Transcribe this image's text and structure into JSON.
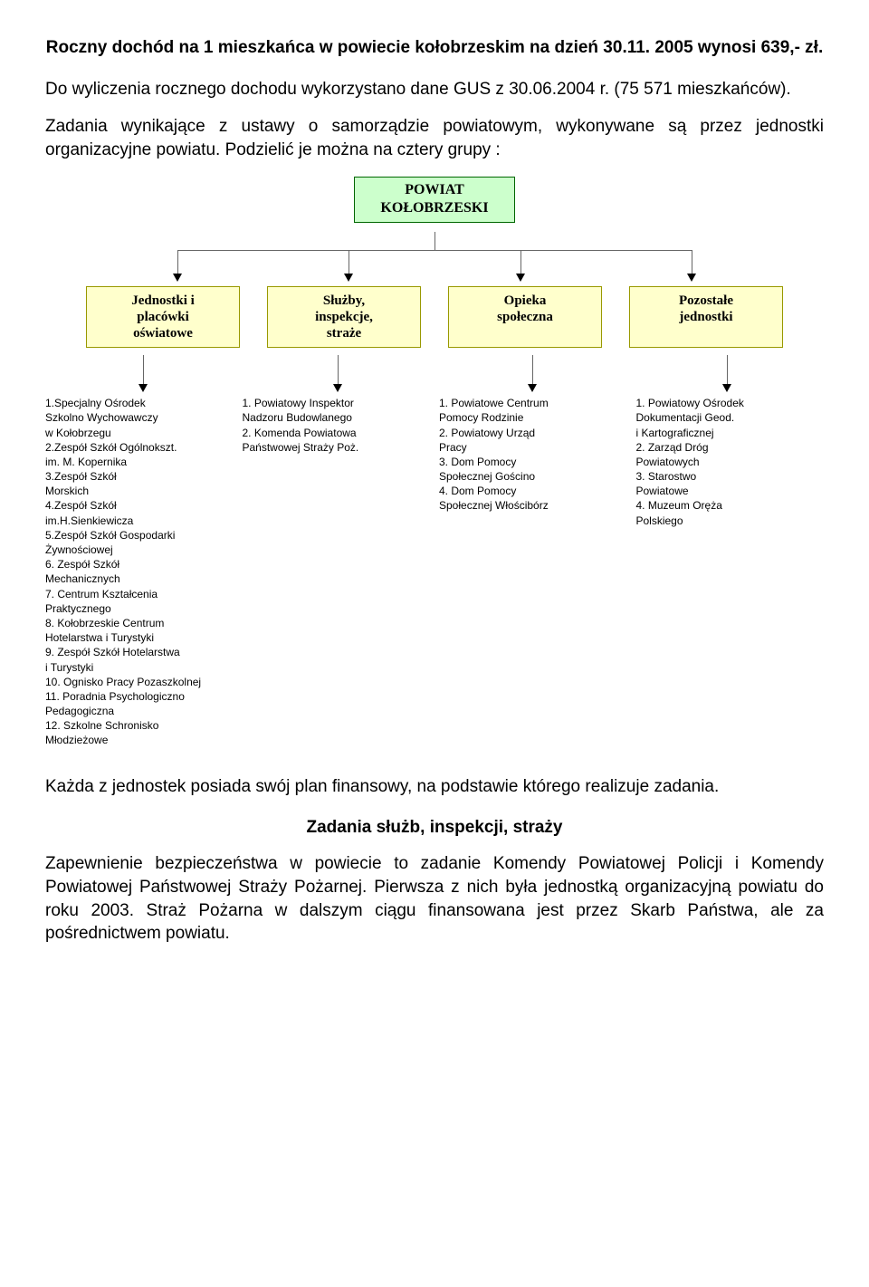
{
  "title": "Roczny dochód na 1 mieszkańca w powiecie kołobrzeskim na dzień 30.11. 2005 wynosi 639,- zł.",
  "para1": "Do wyliczenia rocznego dochodu wykorzystano dane GUS z 30.06.2004 r. (75 571 mieszkańców).",
  "para2": "Zadania wynikające z ustawy o samorządzie powiatowym, wykonywane są przez jednostki organizacyjne powiatu. Podzielić je można na cztery grupy :",
  "diagram": {
    "root": "POWIAT\nKOŁOBRZESKI",
    "children": [
      "Jednostki i\nplacówki\noświatowe",
      "Służby,\ninspekcje,\nstraże",
      "Opieka\nspołeczna",
      "Pozostałe\njednostki"
    ],
    "root_bg": "#ccffcc",
    "root_border": "#006600",
    "child_bg": "#ffffcc",
    "child_border": "#999900"
  },
  "columns": [
    {
      "items": [
        "1.Specjalny Ośrodek\n   Szkolno Wychowawczy\n   w Kołobrzegu",
        "2.Zespół Szkół Ogólnokszt.\n   im. M. Kopernika",
        "3.Zespół Szkół\n   Morskich",
        "4.Zespół Szkół\n   im.H.Sienkiewicza",
        "5.Zespół Szkół Gospodarki\n   Żywnościowej",
        "6. Zespół Szkół\n   Mechanicznych",
        "7. Centrum Kształcenia\n   Praktycznego",
        "8. Kołobrzeskie Centrum\n   Hotelarstwa i Turystyki",
        "9. Zespół Szkół Hotelarstwa\n   i Turystyki",
        "10. Ognisko Pracy Pozaszkolnej",
        "11. Poradnia Psychologiczno\n   Pedagogiczna",
        "12. Szkolne Schronisko\n   Młodzieżowe"
      ]
    },
    {
      "items": [
        "1. Powiatowy Inspektor\n   Nadzoru Budowlanego",
        "2. Komenda Powiatowa\n   Państwowej Straży Poż."
      ]
    },
    {
      "items": [
        "1. Powiatowe Centrum\n   Pomocy Rodzinie",
        "2. Powiatowy Urząd\n    Pracy",
        "3. Dom Pomocy\n   Społecznej Gościno",
        "4. Dom Pomocy\n   Społecznej Włościbórz"
      ]
    },
    {
      "items": [
        "1. Powiatowy Ośrodek\n   Dokumentacji Geod.\n   i Kartograficznej",
        "2. Zarząd Dróg\n   Powiatowych",
        "3. Starostwo\n   Powiatowe",
        "4. Muzeum Oręża\n   Polskiego"
      ]
    }
  ],
  "para3": "Każda z jednostek posiada swój plan finansowy, na podstawie którego realizuje zadania.",
  "subheading": "Zadania służb, inspekcji, straży",
  "para4": "Zapewnienie bezpieczeństwa w powiecie to zadanie Komendy Powiatowej Policji i Komendy Powiatowej Państwowej Straży Pożarnej. Pierwsza z nich była jednostką organizacyjną powiatu do roku 2003. Straż Pożarna w dalszym ciągu  finansowana jest przez Skarb Państwa, ale za pośrednictwem powiatu."
}
